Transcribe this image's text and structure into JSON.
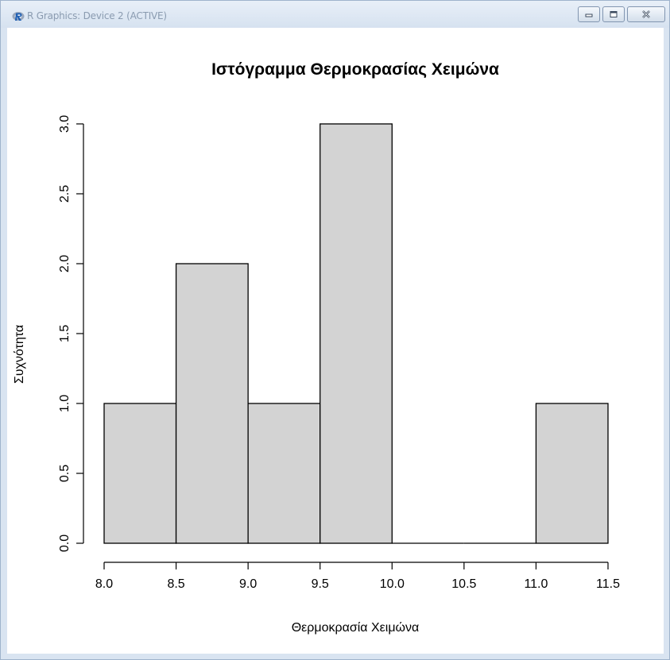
{
  "window": {
    "title": "R Graphics: Device 2 (ACTIVE)",
    "app_icon": "r-logo-icon",
    "controls": [
      "minimize-icon",
      "maximize-icon",
      "close-icon"
    ]
  },
  "chart_data": {
    "type": "bar",
    "subtype": "histogram",
    "title": "Ιστόγραμμα Θερμοκρασίας Χειμώνα",
    "xlabel": "Θερμοκρασία Χειμώνα",
    "ylabel": "Συχνότητα",
    "bins": [
      {
        "from": 8.0,
        "to": 8.5,
        "count": 1
      },
      {
        "from": 8.5,
        "to": 9.0,
        "count": 2
      },
      {
        "from": 9.0,
        "to": 9.5,
        "count": 1
      },
      {
        "from": 9.5,
        "to": 10.0,
        "count": 3
      },
      {
        "from": 10.0,
        "to": 10.5,
        "count": 0
      },
      {
        "from": 10.5,
        "to": 11.0,
        "count": 0
      },
      {
        "from": 11.0,
        "to": 11.5,
        "count": 1
      }
    ],
    "xlim": [
      8.0,
      11.5
    ],
    "ylim": [
      0,
      3.0
    ],
    "xticks": [
      "8.0",
      "8.5",
      "9.0",
      "9.5",
      "10.0",
      "10.5",
      "11.0",
      "11.5"
    ],
    "yticks": [
      "0.0",
      "0.5",
      "1.0",
      "1.5",
      "2.0",
      "2.5",
      "3.0"
    ],
    "bar_color": "#d3d3d3",
    "grid": false,
    "legend": "none"
  }
}
